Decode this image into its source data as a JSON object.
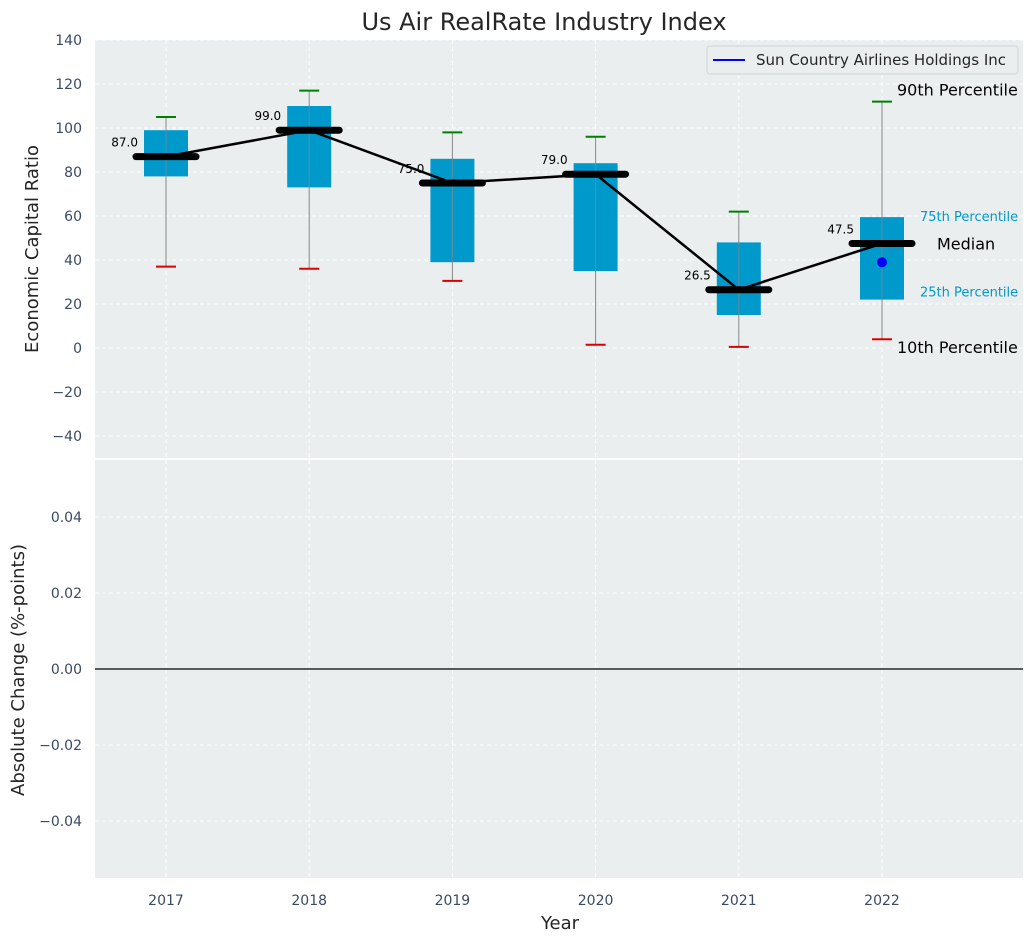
{
  "chart_data": [
    {
      "type": "box",
      "title": "Us Air RealRate Industry Index",
      "xlabel": "",
      "ylabel": "Economic Capital Ratio",
      "ylim": [
        -50,
        140
      ],
      "yticks": [
        -40,
        -20,
        0,
        20,
        40,
        60,
        80,
        100,
        120,
        140
      ],
      "grid": true,
      "legend": {
        "placement": "top-right",
        "entries": [
          "Sun Country Airlines Holdings Inc"
        ]
      },
      "categories": [
        "2017",
        "2018",
        "2019",
        "2020",
        "2021",
        "2022"
      ],
      "boxes": [
        {
          "year": "2017",
          "p10": 37,
          "q1": 78,
          "median": 87,
          "q3": 99,
          "p90": 105
        },
        {
          "year": "2018",
          "p10": 36,
          "q1": 73,
          "median": 99,
          "q3": 110,
          "p90": 117
        },
        {
          "year": "2019",
          "p10": 30.5,
          "q1": 39,
          "median": 75,
          "q3": 86,
          "p90": 98
        },
        {
          "year": "2020",
          "p10": 1.5,
          "q1": 35,
          "median": 79,
          "q3": 84,
          "p90": 96
        },
        {
          "year": "2021",
          "p10": 0.5,
          "q1": 15,
          "median": 26.5,
          "q3": 48,
          "p90": 62
        },
        {
          "year": "2022",
          "p10": 4,
          "q1": 22,
          "median": 47.5,
          "q3": 59.5,
          "p90": 112
        }
      ],
      "median_labels": [
        "87.0",
        "99.0",
        "75.0",
        "79.0",
        "26.5",
        "47.5"
      ],
      "company_series": {
        "name": "Sun Country Airlines Holdings Inc",
        "points": [
          {
            "x": "2022",
            "y": 39
          }
        ]
      },
      "annotations": {
        "p90": "90th Percentile",
        "q3": "75th Percentile",
        "median": "Median",
        "q1": "25th Percentile",
        "p10": "10th Percentile"
      }
    },
    {
      "type": "line",
      "xlabel": "Year",
      "ylabel": "Absolute Change (%-points)",
      "ylim": [
        -0.055,
        0.055
      ],
      "yticks": [
        "−0.04",
        "−0.02",
        "0.00",
        "0.02",
        "0.04"
      ],
      "ytick_values": [
        -0.04,
        -0.02,
        0,
        0.02,
        0.04
      ],
      "xticks": [
        "2017",
        "2018",
        "2019",
        "2020",
        "2021",
        "2022"
      ],
      "reference_line": 0,
      "grid": true
    }
  ],
  "colors": {
    "background": "#eaeeef",
    "box_fill": "#0099cc",
    "whisker": "#888888",
    "p90_cap": "#008000",
    "p10_cap": "#dd0000",
    "median_bar": "#000000",
    "company_point": "#0000ff",
    "grid": "#ffffff"
  }
}
